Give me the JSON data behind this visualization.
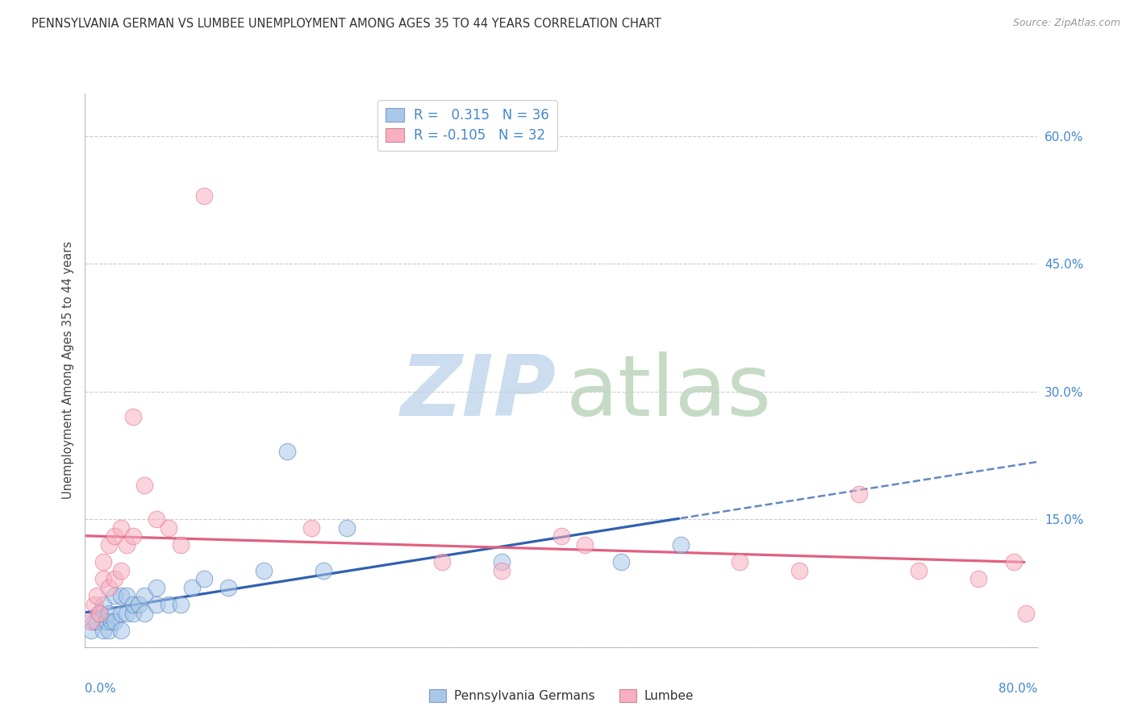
{
  "title": "PENNSYLVANIA GERMAN VS LUMBEE UNEMPLOYMENT AMONG AGES 35 TO 44 YEARS CORRELATION CHART",
  "source": "Source: ZipAtlas.com",
  "ylabel": "Unemployment Among Ages 35 to 44 years",
  "xmin": 0.0,
  "xmax": 0.8,
  "ymin": 0.0,
  "ymax": 0.65,
  "blue_color": "#a8c8e8",
  "blue_edge_color": "#5080c0",
  "blue_line_color": "#3060b0",
  "pink_color": "#f8b0c0",
  "pink_edge_color": "#e07090",
  "pink_line_color": "#e06080",
  "legend_label_blue": "Pennsylvania Germans",
  "legend_label_pink": "Lumbee",
  "blue_R": " 0.315",
  "blue_N": "36",
  "pink_R": "-0.105",
  "pink_N": "32",
  "blue_x": [
    0.005,
    0.008,
    0.01,
    0.012,
    0.015,
    0.015,
    0.018,
    0.02,
    0.02,
    0.022,
    0.025,
    0.025,
    0.03,
    0.03,
    0.03,
    0.035,
    0.035,
    0.04,
    0.04,
    0.045,
    0.05,
    0.05,
    0.06,
    0.06,
    0.07,
    0.08,
    0.09,
    0.1,
    0.12,
    0.15,
    0.17,
    0.2,
    0.22,
    0.35,
    0.45,
    0.5
  ],
  "blue_y": [
    0.02,
    0.03,
    0.03,
    0.04,
    0.02,
    0.05,
    0.03,
    0.02,
    0.04,
    0.03,
    0.03,
    0.06,
    0.02,
    0.04,
    0.06,
    0.04,
    0.06,
    0.04,
    0.05,
    0.05,
    0.04,
    0.06,
    0.05,
    0.07,
    0.05,
    0.05,
    0.07,
    0.08,
    0.07,
    0.09,
    0.23,
    0.09,
    0.14,
    0.1,
    0.1,
    0.12
  ],
  "pink_x": [
    0.005,
    0.008,
    0.01,
    0.012,
    0.015,
    0.015,
    0.02,
    0.02,
    0.025,
    0.025,
    0.03,
    0.03,
    0.035,
    0.04,
    0.04,
    0.05,
    0.06,
    0.07,
    0.08,
    0.1,
    0.19,
    0.3,
    0.35,
    0.4,
    0.42,
    0.55,
    0.6,
    0.65,
    0.7,
    0.75,
    0.78,
    0.79
  ],
  "pink_y": [
    0.03,
    0.05,
    0.06,
    0.04,
    0.08,
    0.1,
    0.07,
    0.12,
    0.08,
    0.13,
    0.09,
    0.14,
    0.12,
    0.13,
    0.27,
    0.19,
    0.15,
    0.14,
    0.12,
    0.53,
    0.14,
    0.1,
    0.09,
    0.13,
    0.12,
    0.1,
    0.09,
    0.18,
    0.09,
    0.08,
    0.1,
    0.04
  ],
  "grid_color": "#cccccc",
  "background_color": "#ffffff",
  "ytick_vals": [
    0.0,
    0.15,
    0.3,
    0.45,
    0.6
  ],
  "right_yticklabels": [
    "",
    "15.0%",
    "30.0%",
    "45.0%",
    "60.0%"
  ],
  "xtick_label_left": "0.0%",
  "xtick_label_right": "80.0%"
}
